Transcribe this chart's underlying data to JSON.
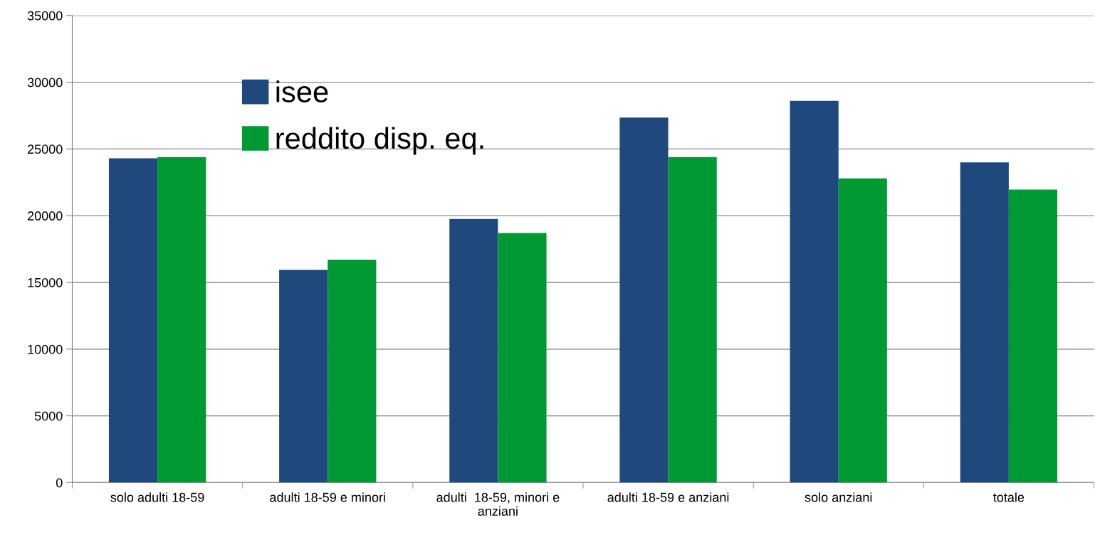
{
  "chart_data": {
    "type": "bar",
    "categories": [
      "solo adulti 18-59",
      "adulti 18-59 e minori",
      "adulti  18-59, minori e\nanziani",
      "adulti 18-59 e anziani",
      "solo anziani",
      "totale"
    ],
    "series": [
      {
        "name": "isee",
        "color": "#1f497d",
        "values": [
          24300,
          15950,
          19750,
          27350,
          28600,
          24000
        ]
      },
      {
        "name": "reddito disp. eq.",
        "color": "#009933",
        "values": [
          24400,
          16700,
          18700,
          24400,
          22800,
          21950
        ]
      }
    ],
    "ylim": [
      0,
      35000
    ],
    "yticks": [
      0,
      5000,
      10000,
      15000,
      20000,
      25000,
      30000,
      35000
    ],
    "grid": "y",
    "legend": "top left"
  }
}
